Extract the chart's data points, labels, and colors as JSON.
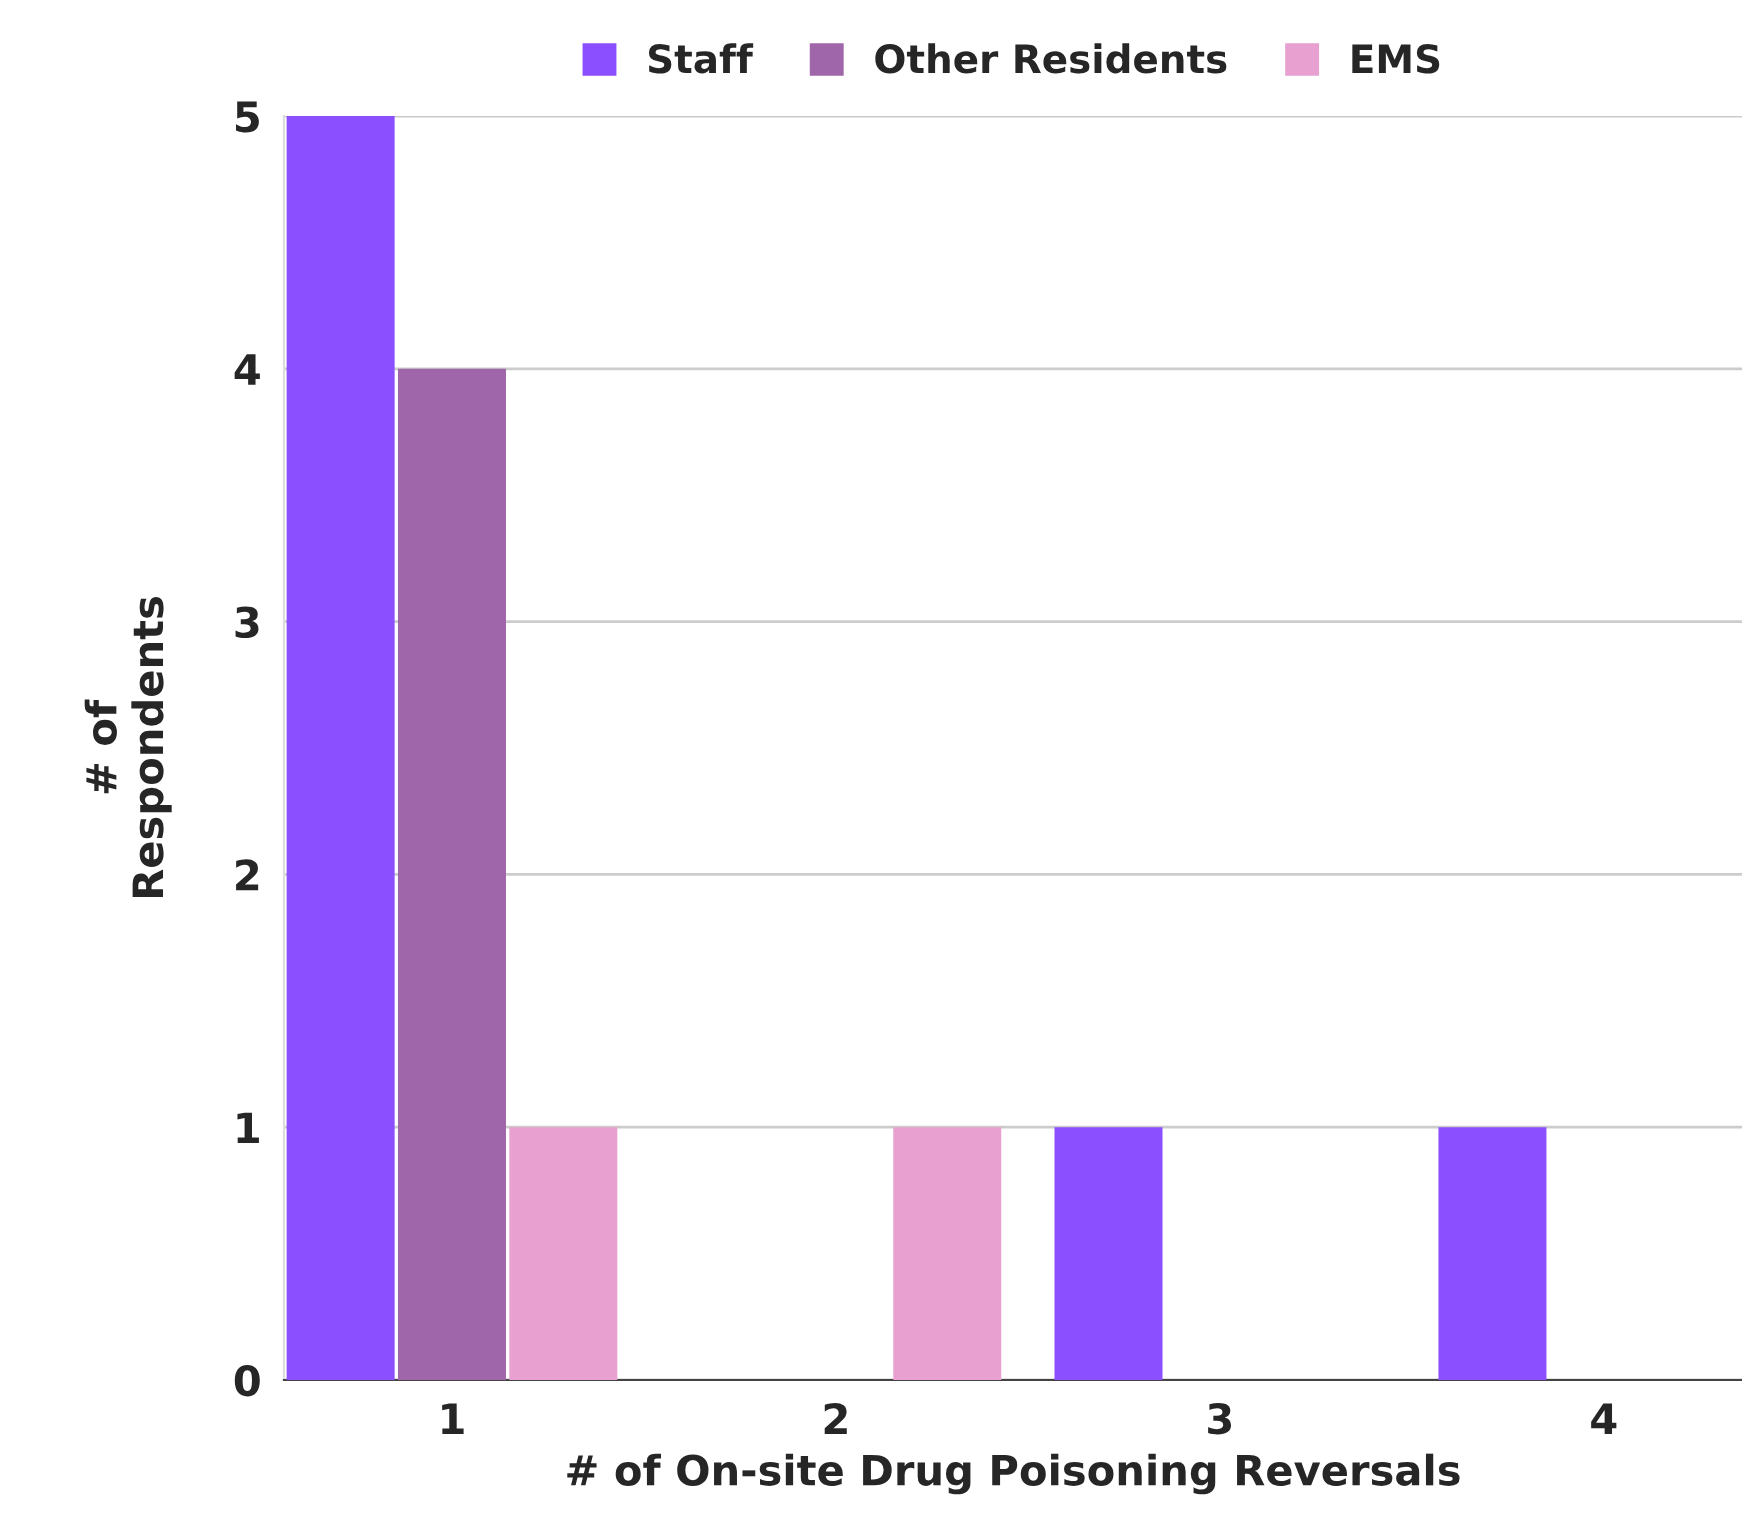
{
  "chart_data": {
    "type": "bar",
    "xlabel": "# of On-site Drug Poisoning Reversals",
    "ylabel": "# of\nRespondents",
    "categories": [
      "1",
      "2",
      "3",
      "4"
    ],
    "series": [
      {
        "name": "Staff",
        "color": "#8c4fff",
        "values": [
          5,
          0,
          1,
          1
        ]
      },
      {
        "name": "Other Residents",
        "color": "#a066aa",
        "values": [
          4,
          0,
          0,
          0
        ]
      },
      {
        "name": "EMS",
        "color": "#e8a0d0",
        "values": [
          1,
          1,
          0,
          0
        ]
      }
    ],
    "ylim": [
      0,
      5
    ],
    "yticks": [
      0,
      1,
      2,
      3,
      4,
      5
    ],
    "grid": "y",
    "legend": "top"
  }
}
